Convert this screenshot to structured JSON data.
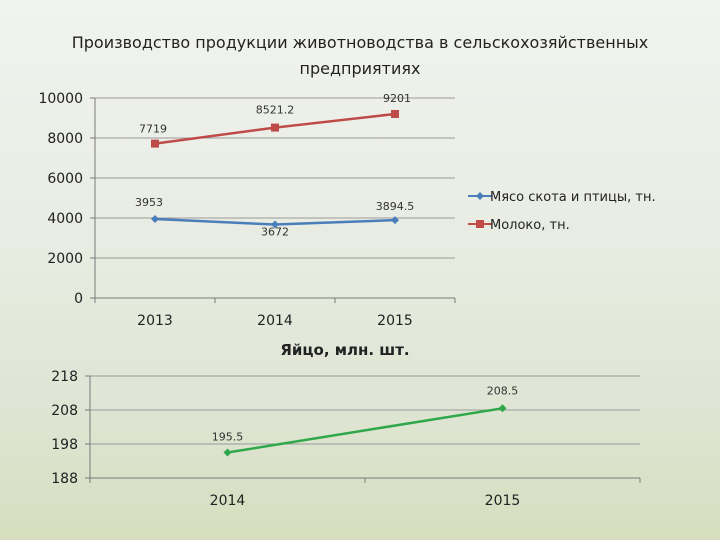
{
  "title_lines": [
    "Производство продукции животноводства в сельскохозяйственных",
    "предприятиях"
  ],
  "chart_data": [
    {
      "type": "line",
      "categories": [
        "2013",
        "2014",
        "2015"
      ],
      "ylim": [
        0,
        10000
      ],
      "yticks": [
        0,
        2000,
        4000,
        6000,
        8000,
        10000
      ],
      "grid": true,
      "legend": "right",
      "series": [
        {
          "name": "Мясо скота и птицы, тн.",
          "values": [
            3953,
            3672,
            3894.5
          ],
          "labels": [
            "3953",
            "3672",
            "3894.5"
          ],
          "color": "#4a7ebb",
          "marker": "diamond"
        },
        {
          "name": "Молоко, тн.",
          "values": [
            7719,
            8521.2,
            9201
          ],
          "labels": [
            "7719",
            "8521.2",
            "9201"
          ],
          "color": "#be4b48",
          "marker": "square"
        }
      ]
    },
    {
      "type": "line",
      "title": "Яйцо, млн. шт.",
      "categories": [
        "2014",
        "2015"
      ],
      "ylim": [
        188,
        218
      ],
      "yticks": [
        188,
        198,
        208,
        218
      ],
      "grid": true,
      "series": [
        {
          "values": [
            195.5,
            208.5
          ],
          "labels": [
            "195.5",
            "208.5"
          ],
          "color": "#2ea84a",
          "marker": "diamond"
        }
      ]
    }
  ]
}
